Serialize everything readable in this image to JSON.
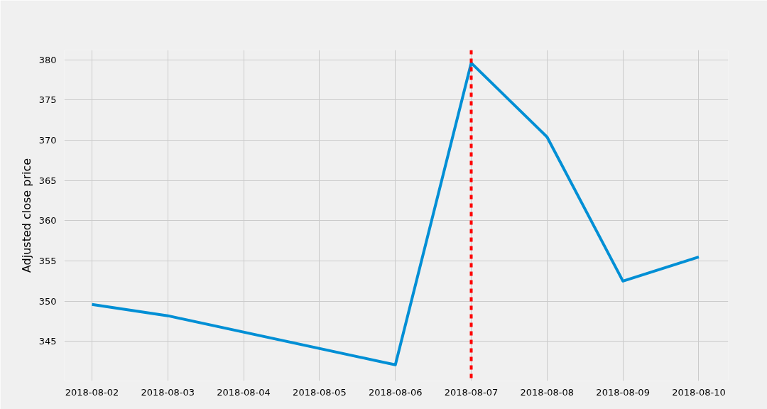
{
  "chart_data": {
    "type": "line",
    "ylabel": "Adjusted close price",
    "x": [
      "2018-08-02",
      "2018-08-03",
      "2018-08-06",
      "2018-08-07",
      "2018-08-08",
      "2018-08-09",
      "2018-08-10"
    ],
    "series": [
      {
        "color": "#008fd5",
        "values": [
          349.6,
          348.2,
          342.1,
          379.6,
          370.4,
          352.5,
          355.5
        ]
      }
    ],
    "xlim": [
      "2018-08-01T15:15",
      "2018-08-10T09:20"
    ],
    "ylim": [
      340.1,
      381.2
    ],
    "xticks": [
      "2018-08-02",
      "2018-08-03",
      "2018-08-04",
      "2018-08-05",
      "2018-08-06",
      "2018-08-07",
      "2018-08-08",
      "2018-08-09",
      "2018-08-10"
    ],
    "yticks": [
      345,
      350,
      355,
      360,
      365,
      370,
      375,
      380
    ],
    "ref_lines": [
      {
        "axis": "x",
        "value": "2018-08-07",
        "color": "#ff0000",
        "line_style": "dashed"
      }
    ],
    "grid": true,
    "line_style": "solid",
    "marker": "none"
  }
}
